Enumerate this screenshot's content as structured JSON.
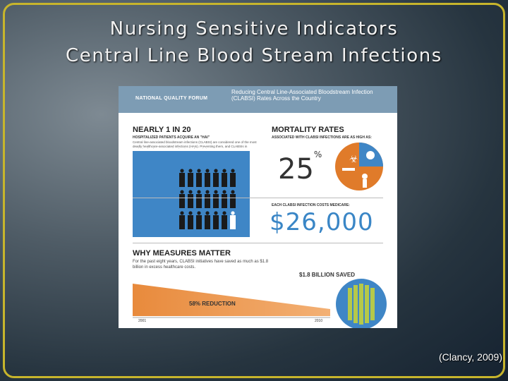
{
  "slide": {
    "title_line1": "Nursing Sensitive Indicators",
    "title_line2": "Central Line Blood Stream Infections",
    "citation": "(Clancy, 2009)"
  },
  "infographic": {
    "org": "NATIONAL QUALITY FORUM",
    "header": "Reducing Central Line-Associated Bloodstream Infection (CLABSI) Rates Across the Country",
    "stat1_title": "NEARLY 1 IN 20",
    "stat1_sub": "HOSPITALIZED PATIENTS ACQUIRE AN \"HAI\"",
    "stat1_body": "Central line-associated bloodstream infections (CLABSI) are considered one of the most deadly healthcare-associated infections (HAIs). Preventing them, and CLABSIs in particular, has become a national patient safety priority.",
    "mortality_title": "MORTALITY RATES",
    "mortality_sub": "ASSOCIATED WITH CLABSI INFECTIONS ARE AS HIGH AS:",
    "mortality_value": "25",
    "mortality_unit": "%",
    "cost_label": "EACH CLABSI INFECTION COSTS MEDICARE:",
    "cost_value": "$26,000",
    "why_title": "WHY MEASURES MATTER",
    "why_body": "For the past eight years, CLABSI initiatives have saved as much as $1.8 billion in excess healthcare costs.",
    "saved_label": "$1.8 BILLION SAVED",
    "reduction_label": "58% REDUCTION",
    "year_start": "2001",
    "year_end": "2010"
  },
  "colors": {
    "accent_blue": "#3f86c6",
    "orange": "#e07b2a",
    "border_gold": "#c7b52c",
    "green": "#9fb83a"
  }
}
